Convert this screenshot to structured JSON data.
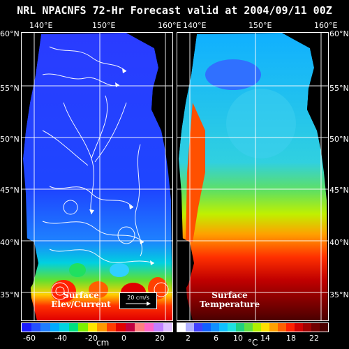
{
  "title": "NRL NPACNFS 72-Hr Forecast valid at 2004/09/11 00Z",
  "lon_labels": [
    "140°E",
    "150°E",
    "160°E"
  ],
  "lat_labels": [
    "60°N",
    "55°N",
    "50°N",
    "45°N",
    "40°N",
    "35°N"
  ],
  "left_panel": {
    "label_line1": "Surface",
    "label_line2": "Elev/Current",
    "scale_label": "20 cm/s",
    "colorbar_ticks": [
      "-60",
      "-40",
      "-20",
      "0",
      "20"
    ],
    "unit": "cm",
    "colors": [
      "#1a1aff",
      "#2450ff",
      "#1e7dff",
      "#00aaff",
      "#00d4e0",
      "#00e080",
      "#7cf000",
      "#ffe600",
      "#ff9900",
      "#ff3c00",
      "#e00000",
      "#c00040",
      "#ff8080",
      "#ff66c8",
      "#c080ff",
      "#e0c0ff"
    ]
  },
  "right_panel": {
    "label_line1": "Surface",
    "label_line2": "Temperature",
    "colorbar_ticks": [
      "2",
      "6",
      "10",
      "14",
      "18",
      "22"
    ],
    "unit": "°C",
    "colors": [
      "#ffffff",
      "#b0b0ff",
      "#4040ff",
      "#1060ff",
      "#1090ff",
      "#10c0ff",
      "#20e0e0",
      "#20d080",
      "#60e040",
      "#b0f000",
      "#ffe000",
      "#ffa000",
      "#ff6000",
      "#ff2000",
      "#d00000",
      "#a00000",
      "#700000",
      "#4a0000"
    ]
  }
}
